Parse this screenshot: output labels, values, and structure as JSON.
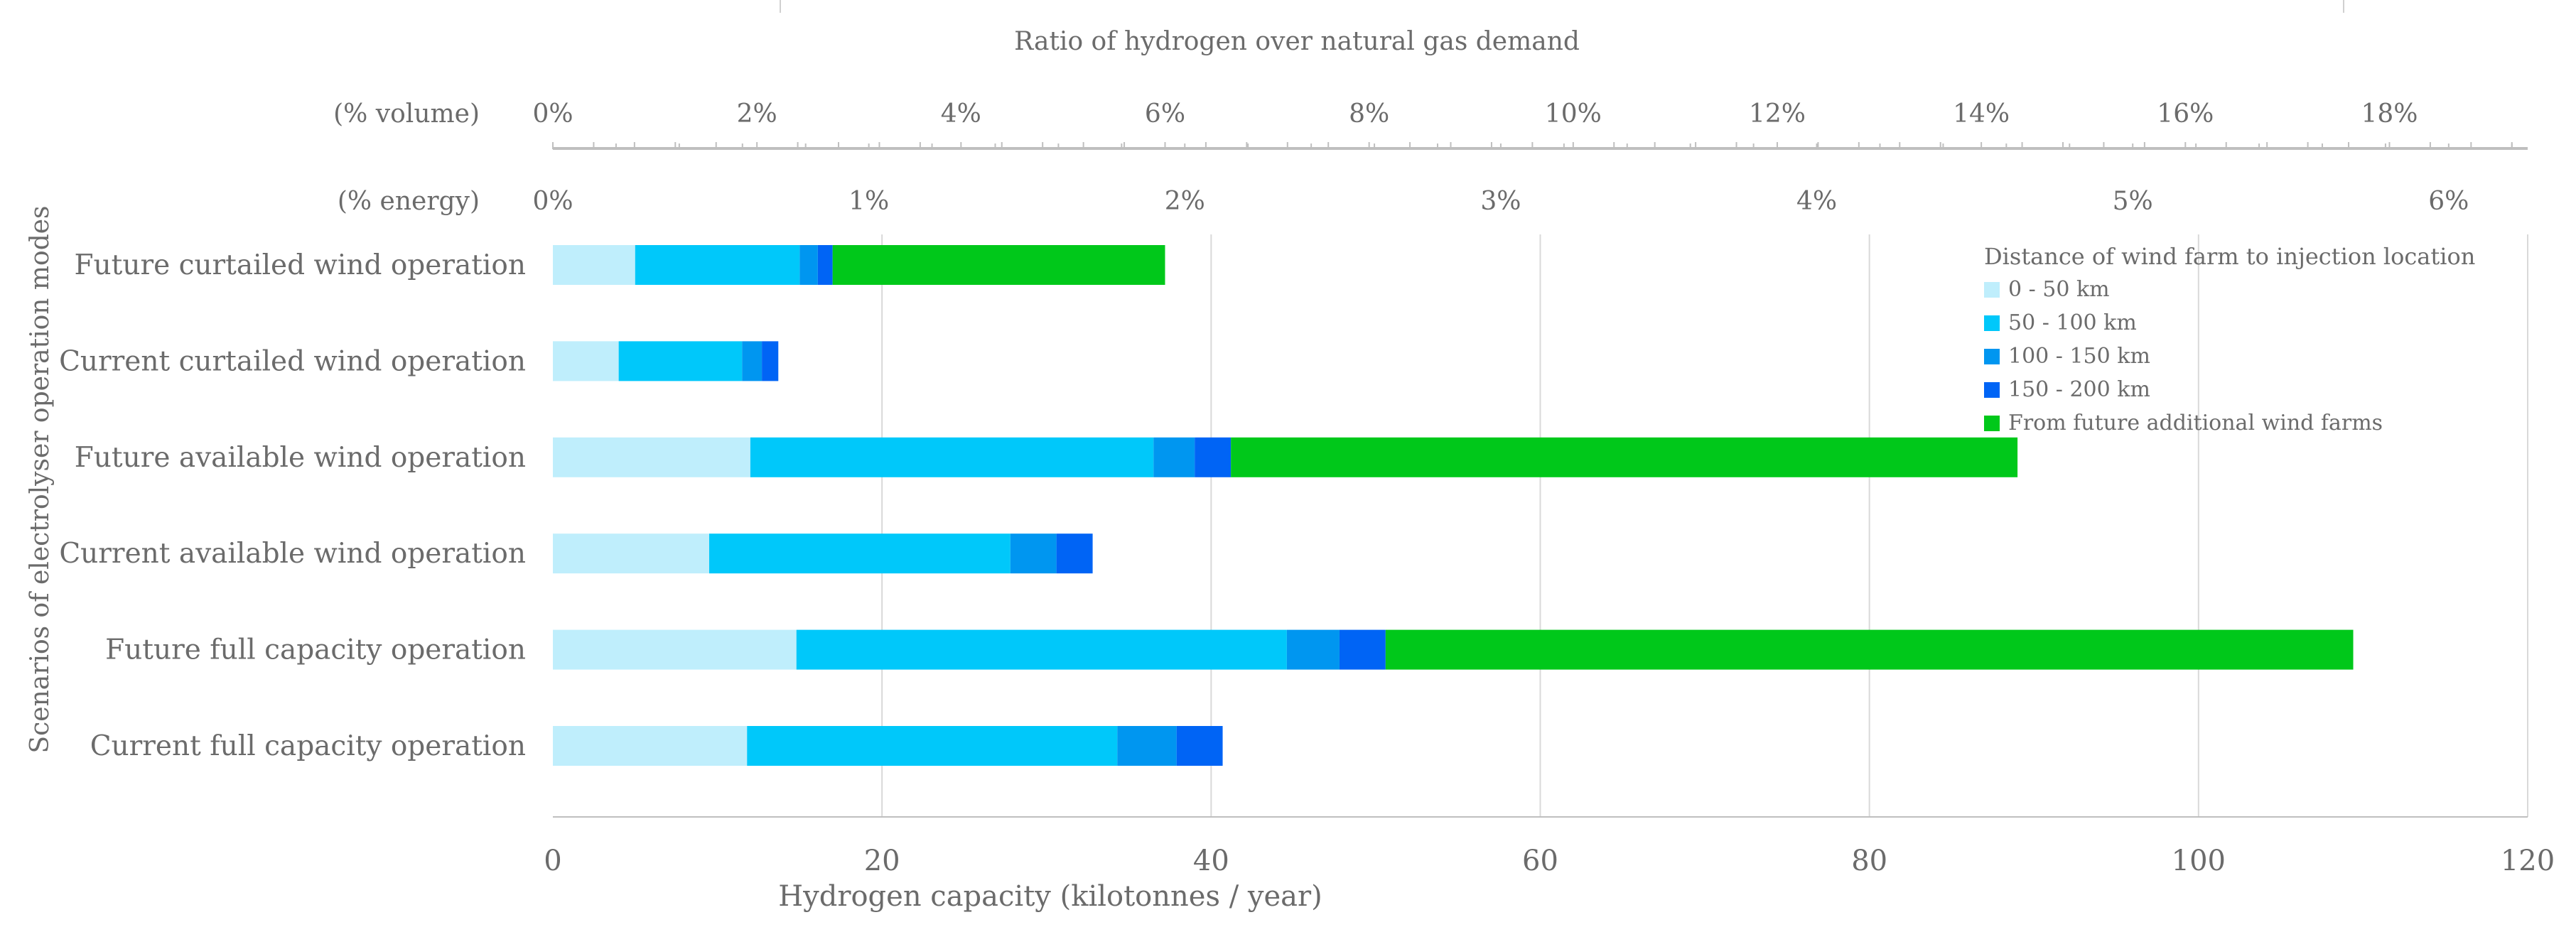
{
  "colors": {
    "seg_0_50": "#bfeefc",
    "seg_50_100": "#00c8fa",
    "seg_100_150": "#0096f0",
    "seg_150_200": "#0064f5",
    "seg_future": "#00c81a",
    "grid": "#d9d9d9",
    "axis": "#bfbfbf",
    "text": "#6b6b6b"
  },
  "chart_data": {
    "type": "bar",
    "orientation": "horizontal",
    "stacked": true,
    "title": "Ratio of hydrogen over natural gas demand",
    "xlabel": "Hydrogen capacity (kilotonnes / year)",
    "ylabel": "Scenarios of electrolyser operation modes",
    "xlim": [
      0,
      120
    ],
    "x_ticks": [
      "0",
      "20",
      "40",
      "60",
      "80",
      "100",
      "120"
    ],
    "grid": true,
    "categories": [
      "Future curtailed wind operation",
      "Current curtailed wind operation",
      "Future  available wind operation",
      "Current available wind operation",
      "Future full capacity operation",
      "Current full capacity operation"
    ],
    "series": [
      {
        "name": "0 - 50 km",
        "color_key": "seg_0_50",
        "values": [
          5.0,
          4.0,
          12.0,
          9.5,
          14.8,
          11.8
        ]
      },
      {
        "name": "50 - 100 km",
        "color_key": "seg_50_100",
        "values": [
          10.0,
          7.5,
          24.5,
          18.3,
          29.8,
          22.5
        ]
      },
      {
        "name": "100 - 150 km",
        "color_key": "seg_100_150",
        "values": [
          1.1,
          1.2,
          2.5,
          2.8,
          3.2,
          3.6
        ]
      },
      {
        "name": "150 - 200 km",
        "color_key": "seg_150_200",
        "values": [
          0.9,
          1.0,
          2.2,
          2.2,
          2.8,
          2.8
        ]
      },
      {
        "name": "From future additional wind farms",
        "color_key": "seg_future",
        "values": [
          20.2,
          0,
          47.8,
          0,
          58.8,
          0
        ]
      }
    ],
    "legend": {
      "title": "Distance of wind farm to injection location",
      "position": "top-right"
    },
    "secondary_axes": [
      {
        "label": "(% volume)",
        "ticks": [
          "0%",
          "2%",
          "4%",
          "6%",
          "8%",
          "10%",
          "12%",
          "14%",
          "16%",
          "18%"
        ],
        "tick_positions_kt": [
          0,
          12.4,
          24.8,
          37.2,
          49.6,
          62.0,
          74.4,
          86.8,
          99.2,
          111.6
        ]
      },
      {
        "label": "(% energy)",
        "ticks": [
          "0%",
          "1%",
          "2%",
          "3%",
          "4%",
          "5%",
          "6%"
        ],
        "tick_positions_kt": [
          0,
          19.2,
          38.4,
          57.6,
          76.8,
          96.0,
          115.2
        ]
      }
    ]
  }
}
